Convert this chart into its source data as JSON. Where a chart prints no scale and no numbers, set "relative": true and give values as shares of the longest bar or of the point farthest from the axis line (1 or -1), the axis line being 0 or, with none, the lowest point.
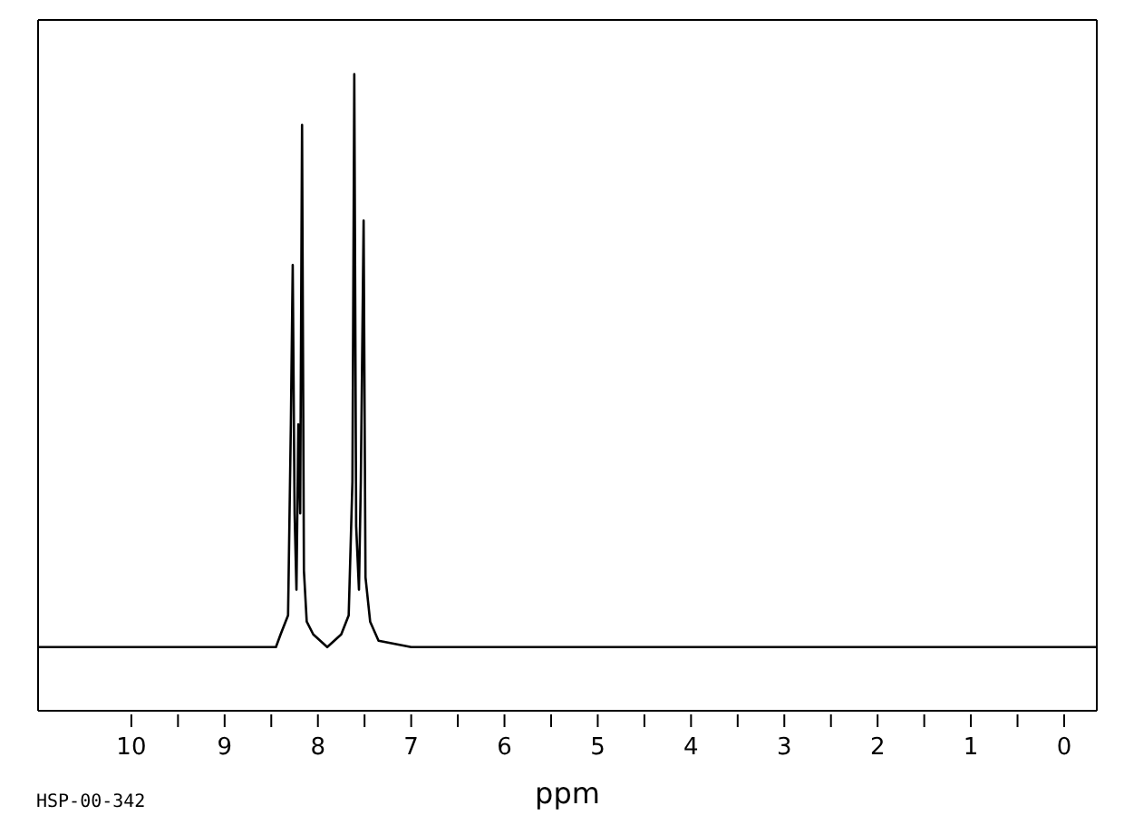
{
  "chart_data": {
    "type": "line",
    "relative": true,
    "xlabel": "ppm",
    "annotations": [
      "HSP-00-342"
    ],
    "xlim": [
      11,
      -0.35
    ],
    "xticks": [
      10,
      {
        "value": 9.5,
        "label": null
      },
      9,
      {
        "value": 8.5,
        "label": null
      },
      8,
      {
        "value": 7.5,
        "label": null
      },
      7,
      {
        "value": 6.5,
        "label": null
      },
      6,
      {
        "value": 5.5,
        "label": null
      },
      5,
      {
        "value": 4.5,
        "label": null
      },
      4,
      {
        "value": 3.5,
        "label": null
      },
      3,
      {
        "value": 2.5,
        "label": null
      },
      2,
      {
        "value": 1.5,
        "label": null
      },
      1,
      {
        "value": 0.5,
        "label": null
      },
      0
    ],
    "grid": false,
    "legend": false,
    "marker": "none",
    "line_style": "solid",
    "series": [
      {
        "color": "#000000",
        "x": [
          11,
          9,
          8.45,
          8.4,
          8.32,
          8.29,
          8.27,
          8.25,
          8.23,
          8.21,
          8.19,
          8.17,
          8.15,
          8.12,
          8.05,
          7.9,
          7.75,
          7.67,
          7.63,
          7.61,
          7.59,
          7.56,
          7.54,
          7.51,
          7.49,
          7.44,
          7.35,
          7.0,
          -0.35
        ],
        "values": [
          0.1,
          0.1,
          0.1,
          0.12,
          0.15,
          0.45,
          0.7,
          0.31,
          0.19,
          0.45,
          0.31,
          0.92,
          0.22,
          0.14,
          0.12,
          0.1,
          0.12,
          0.15,
          0.36,
          1.0,
          0.29,
          0.19,
          0.36,
          0.77,
          0.21,
          0.14,
          0.11,
          0.1,
          0.1
        ]
      }
    ]
  }
}
